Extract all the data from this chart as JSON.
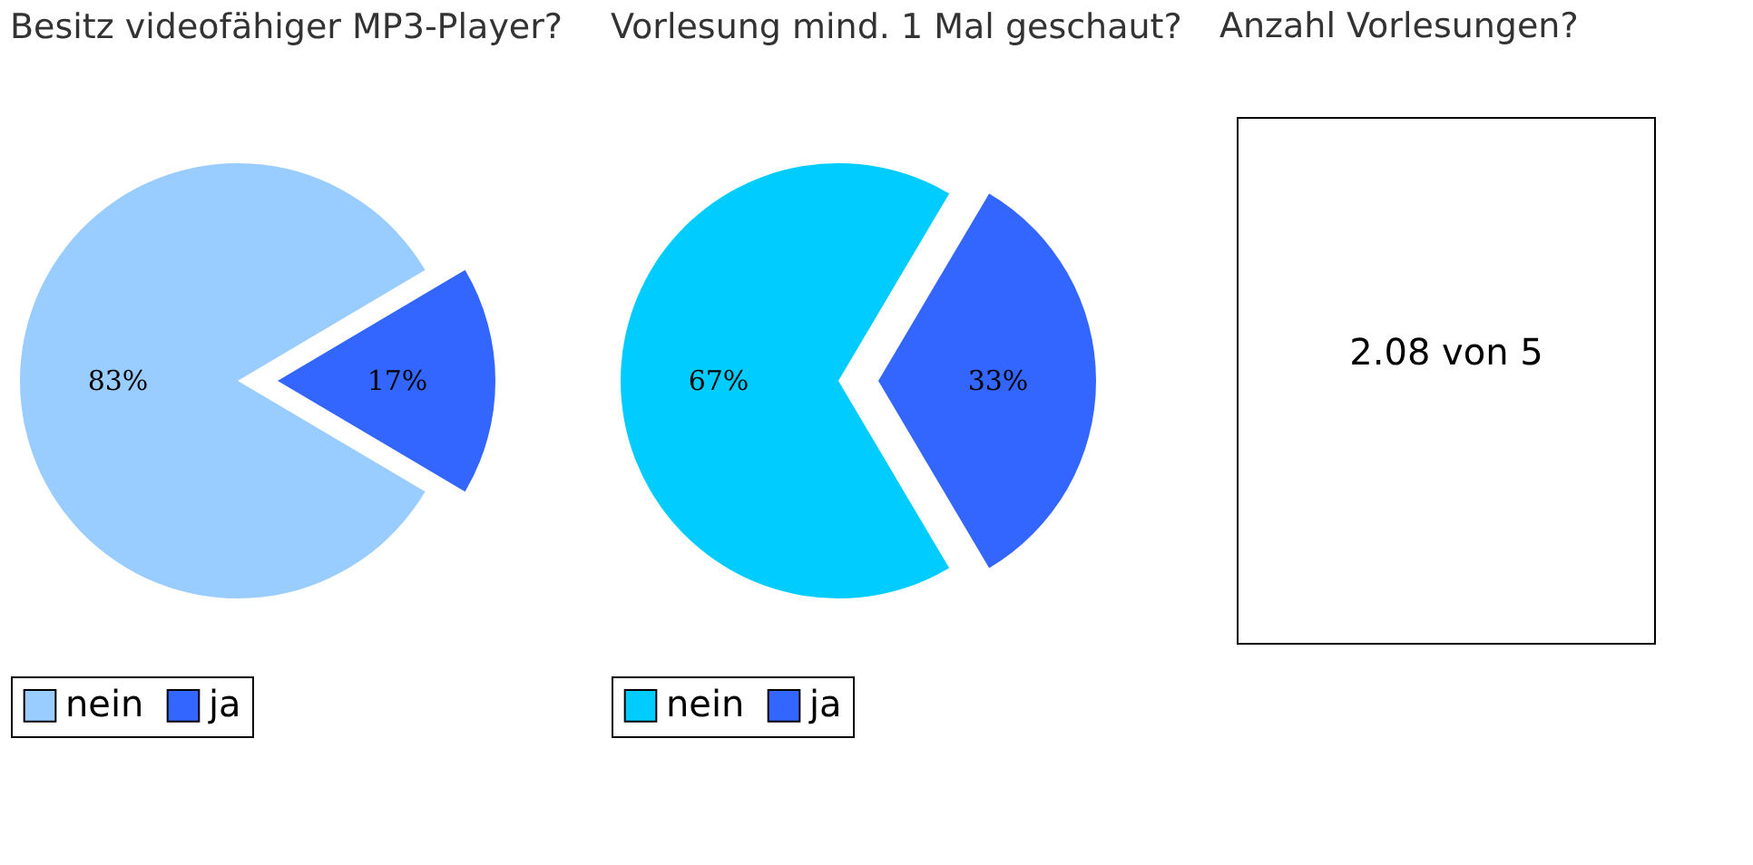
{
  "chart_data": [
    {
      "type": "pie",
      "title": "Besitz videofähiger MP3-Player?",
      "categories": [
        "nein",
        "ja"
      ],
      "values": [
        83,
        17
      ],
      "colors": [
        "#99ccff",
        "#3366ff"
      ],
      "value_labels": [
        "83%",
        "17%"
      ],
      "legend": "bottom"
    },
    {
      "type": "pie",
      "title": "Vorlesung mind. 1 Mal geschaut?",
      "categories": [
        "nein",
        "ja"
      ],
      "values": [
        67,
        33
      ],
      "colors": [
        "#00ccff",
        "#3366ff"
      ],
      "value_labels": [
        "67%",
        "33%"
      ],
      "legend": "bottom"
    },
    {
      "type": "other",
      "title": "Anzahl Vorlesungen?",
      "annotations": [
        "2.08 von 5"
      ]
    }
  ]
}
